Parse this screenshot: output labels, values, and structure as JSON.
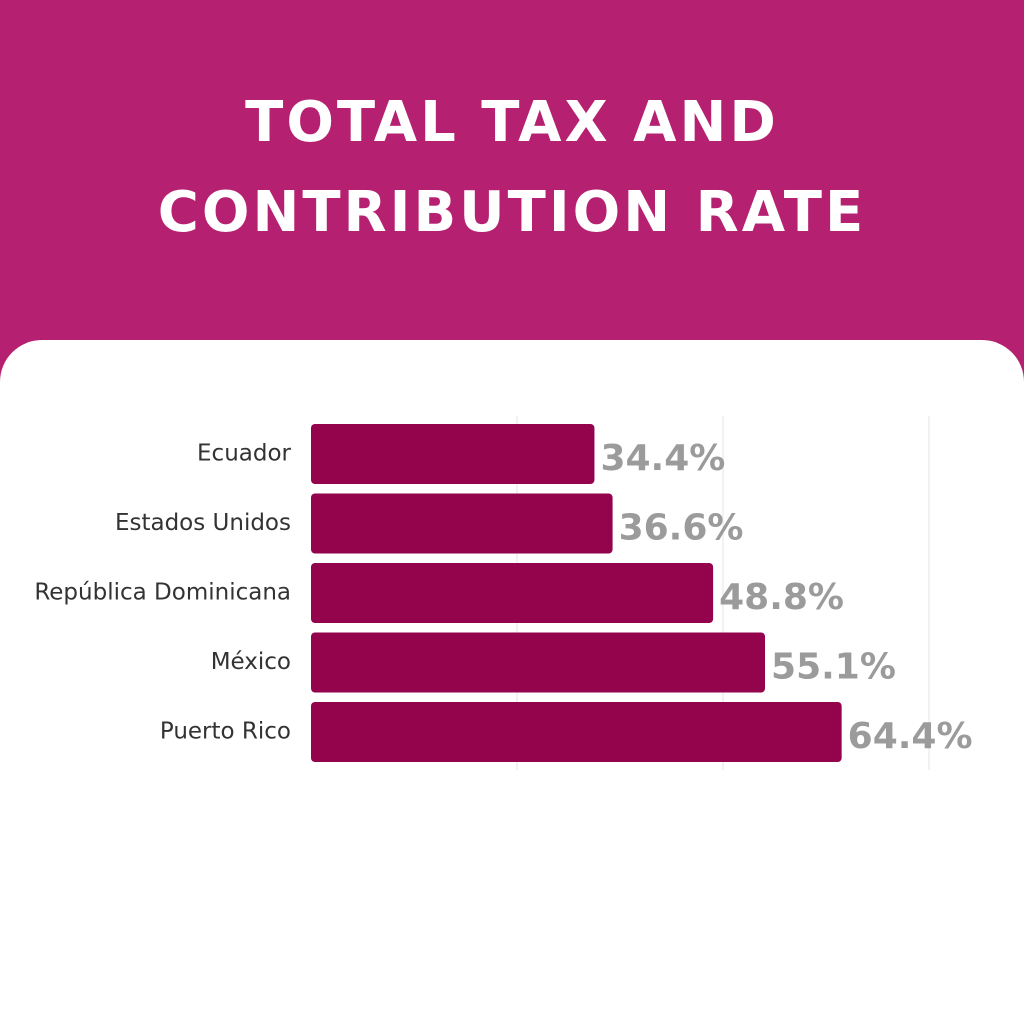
{
  "title_lines": [
    "TOTAL TAX AND",
    "CONTRIBUTION RATE"
  ],
  "colors": {
    "header_bg": "#b52170",
    "bar": "#93044c",
    "value_label": "#9b9b9b",
    "category_label": "#333333",
    "grid": "#e6e6e6"
  },
  "chart_data": {
    "type": "bar",
    "orientation": "horizontal",
    "categories": [
      "Ecuador",
      "Estados Unidos",
      "República Dominicana",
      "México",
      "Puerto Rico"
    ],
    "values": [
      34.4,
      36.6,
      48.8,
      55.1,
      64.4
    ],
    "value_labels": [
      "34.4%",
      "36.6%",
      "48.8%",
      "55.1%",
      "64.4%"
    ],
    "unit": "%",
    "xlim": [
      0,
      100
    ],
    "grid": true,
    "legend": "none"
  }
}
